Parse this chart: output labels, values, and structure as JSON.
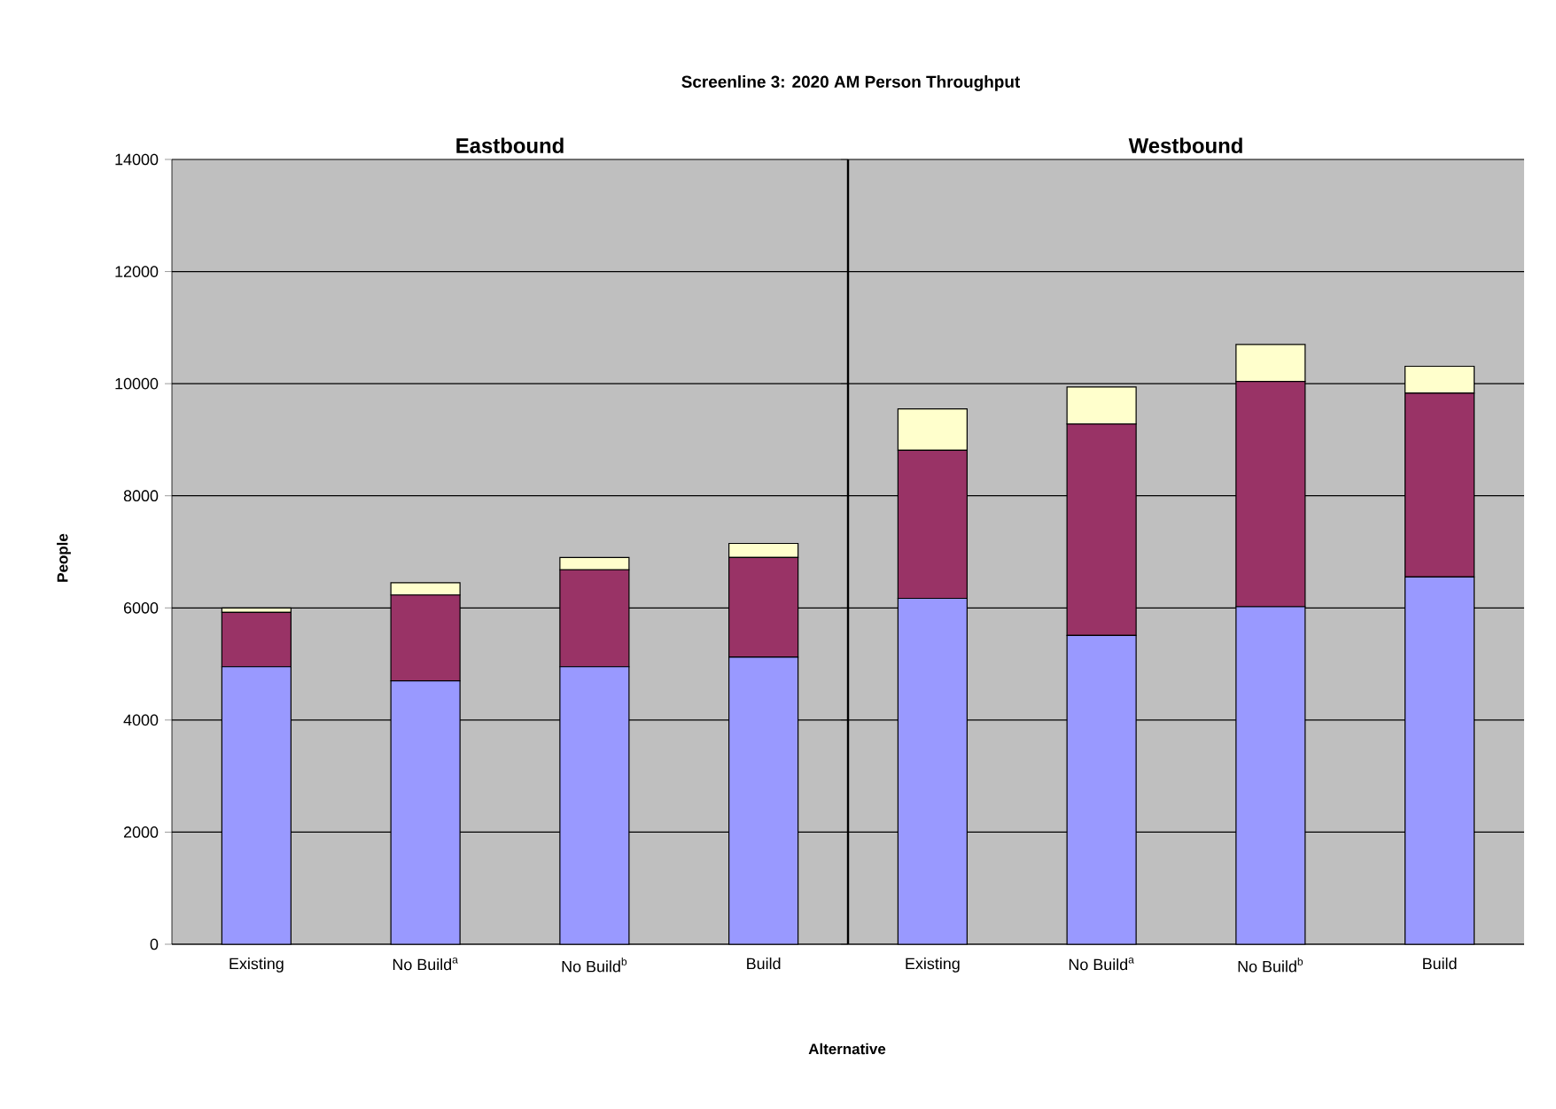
{
  "chart_data": [
    {
      "type": "bar",
      "stacked": true,
      "title": "Screenline 3: 2020 AM Person Throughput",
      "subtitle": "Eastbound",
      "ylabel": "People",
      "categories": [
        "Existing",
        "No Build$^{a}$",
        "No Build$^{b}$",
        "Build"
      ],
      "series": [
        {
          "color": "#9999ff",
          "values": [
            4950,
            4700,
            4950,
            5120
          ]
        },
        {
          "color": "#993366",
          "values": [
            970,
            1530,
            1730,
            1780
          ]
        },
        {
          "color": "#ffffcc",
          "values": [
            80,
            220,
            220,
            250
          ]
        }
      ],
      "ylim": [
        0,
        14000
      ],
      "yticks": [
        0,
        2000,
        4000,
        6000,
        8000,
        10000,
        12000,
        14000
      ],
      "grid": "y",
      "annotations": [
        "Alternative"
      ]
    },
    {
      "type": "bar",
      "stacked": true,
      "subtitle": "Westbound",
      "categories": [
        "Existing",
        "No Build$^{a}$",
        "No Build$^{b}$",
        "Build"
      ],
      "series": [
        {
          "color": "#9999ff",
          "values": [
            6170,
            5510,
            6020,
            6550
          ]
        },
        {
          "color": "#993366",
          "values": [
            2640,
            3770,
            4020,
            3280
          ]
        },
        {
          "color": "#ffffcc",
          "values": [
            740,
            660,
            660,
            480
          ]
        }
      ],
      "ylim": [
        0,
        14000
      ],
      "yticks": [
        0,
        2000,
        4000,
        6000,
        8000,
        10000,
        12000,
        14000
      ],
      "grid": "y",
      "tick_labels": "x"
    }
  ]
}
